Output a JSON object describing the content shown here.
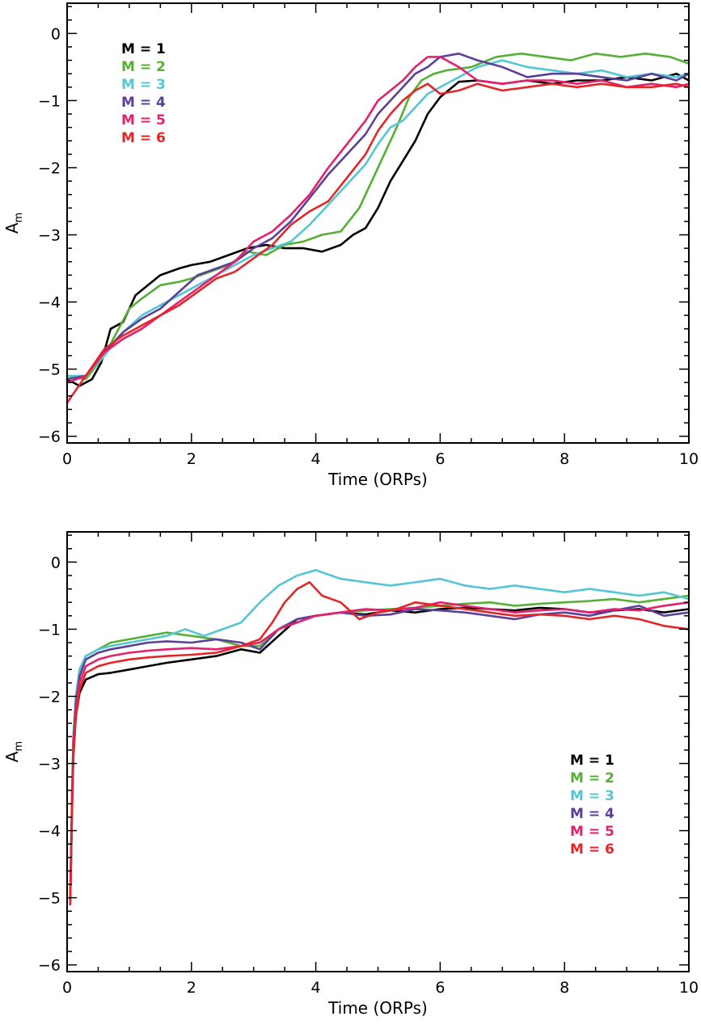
{
  "chart_data": [
    {
      "type": "line",
      "xlabel": "Time (ORPs)",
      "ylabel": "A",
      "ylabel_sub": "m",
      "xlim": [
        0,
        10
      ],
      "ylim": [
        -6.1,
        0.45
      ],
      "xticks": [
        0,
        2,
        4,
        6,
        8,
        10
      ],
      "yticks": [
        -6,
        -5,
        -4,
        -3,
        -2,
        -1,
        0
      ],
      "legend_placement": "top-left",
      "series": [
        {
          "name": "M = 1",
          "color": "#000000",
          "x": [
            0,
            0.2,
            0.4,
            0.55,
            0.7,
            0.9,
            1.1,
            1.3,
            1.5,
            1.8,
            2.0,
            2.3,
            2.6,
            2.9,
            3.2,
            3.5,
            3.8,
            4.1,
            4.4,
            4.6,
            4.8,
            5.0,
            5.2,
            5.4,
            5.6,
            5.8,
            6.0,
            6.3,
            6.6,
            7.0,
            7.4,
            7.8,
            8.2,
            8.6,
            9.0,
            9.4,
            9.8,
            10
          ],
          "y": [
            -5.15,
            -5.25,
            -5.15,
            -4.9,
            -4.4,
            -4.3,
            -3.9,
            -3.75,
            -3.6,
            -3.5,
            -3.45,
            -3.4,
            -3.3,
            -3.2,
            -3.15,
            -3.2,
            -3.2,
            -3.25,
            -3.15,
            -3.0,
            -2.9,
            -2.6,
            -2.2,
            -1.9,
            -1.6,
            -1.2,
            -0.95,
            -0.72,
            -0.7,
            -0.75,
            -0.7,
            -0.75,
            -0.7,
            -0.7,
            -0.65,
            -0.7,
            -0.6,
            -0.7
          ]
        },
        {
          "name": "M = 2",
          "color": "#55b035",
          "x": [
            0,
            0.3,
            0.6,
            0.8,
            1.0,
            1.2,
            1.5,
            1.8,
            2.0,
            2.3,
            2.6,
            2.9,
            3.2,
            3.5,
            3.8,
            4.1,
            4.4,
            4.7,
            4.9,
            5.1,
            5.3,
            5.5,
            5.7,
            5.9,
            6.1,
            6.5,
            6.9,
            7.3,
            7.7,
            8.1,
            8.5,
            8.9,
            9.3,
            9.7,
            10
          ],
          "y": [
            -5.1,
            -5.15,
            -4.8,
            -4.45,
            -4.1,
            -3.95,
            -3.75,
            -3.7,
            -3.65,
            -3.55,
            -3.45,
            -3.25,
            -3.3,
            -3.15,
            -3.1,
            -3.0,
            -2.95,
            -2.6,
            -2.2,
            -1.8,
            -1.4,
            -0.95,
            -0.7,
            -0.6,
            -0.55,
            -0.5,
            -0.35,
            -0.3,
            -0.35,
            -0.4,
            -0.3,
            -0.35,
            -0.3,
            -0.35,
            -0.45
          ]
        },
        {
          "name": "M = 3",
          "color": "#55c6d4",
          "x": [
            0,
            0.3,
            0.6,
            0.9,
            1.2,
            1.5,
            1.8,
            2.1,
            2.4,
            2.7,
            3.0,
            3.3,
            3.6,
            3.9,
            4.2,
            4.5,
            4.8,
            5.0,
            5.2,
            5.4,
            5.6,
            5.8,
            6.0,
            6.3,
            6.6,
            7.0,
            7.4,
            7.8,
            8.2,
            8.6,
            9.0,
            9.4,
            9.8,
            10
          ],
          "y": [
            -5.1,
            -5.1,
            -4.8,
            -4.45,
            -4.2,
            -4.05,
            -3.9,
            -3.75,
            -3.6,
            -3.45,
            -3.3,
            -3.2,
            -3.1,
            -2.85,
            -2.55,
            -2.25,
            -1.95,
            -1.65,
            -1.4,
            -1.3,
            -1.1,
            -0.9,
            -0.8,
            -0.65,
            -0.5,
            -0.4,
            -0.5,
            -0.55,
            -0.6,
            -0.55,
            -0.65,
            -0.6,
            -0.65,
            -0.6
          ]
        },
        {
          "name": "M = 4",
          "color": "#5a4098",
          "x": [
            0,
            0.3,
            0.6,
            0.9,
            1.2,
            1.5,
            1.8,
            2.1,
            2.4,
            2.7,
            3.0,
            3.3,
            3.6,
            3.9,
            4.2,
            4.5,
            4.8,
            5.0,
            5.2,
            5.4,
            5.6,
            5.8,
            6.0,
            6.3,
            6.6,
            7.0,
            7.4,
            7.8,
            8.2,
            8.6,
            9.0,
            9.4,
            9.8,
            10
          ],
          "y": [
            -5.15,
            -5.1,
            -4.75,
            -4.45,
            -4.25,
            -4.1,
            -3.85,
            -3.6,
            -3.5,
            -3.4,
            -3.2,
            -3.05,
            -2.8,
            -2.45,
            -2.1,
            -1.8,
            -1.5,
            -1.2,
            -1.0,
            -0.8,
            -0.6,
            -0.5,
            -0.35,
            -0.3,
            -0.4,
            -0.5,
            -0.65,
            -0.6,
            -0.6,
            -0.65,
            -0.7,
            -0.6,
            -0.7,
            -0.6
          ]
        },
        {
          "name": "M = 5",
          "color": "#e6206c",
          "x": [
            0,
            0.3,
            0.6,
            0.9,
            1.2,
            1.5,
            1.8,
            2.1,
            2.4,
            2.7,
            3.0,
            3.3,
            3.6,
            3.9,
            4.2,
            4.5,
            4.8,
            5.0,
            5.2,
            5.4,
            5.6,
            5.8,
            6.0,
            6.3,
            6.6,
            7.0,
            7.4,
            7.8,
            8.2,
            8.6,
            9.0,
            9.4,
            9.8,
            10
          ],
          "y": [
            -5.2,
            -5.1,
            -4.75,
            -4.55,
            -4.4,
            -4.2,
            -4.0,
            -3.8,
            -3.6,
            -3.4,
            -3.1,
            -2.95,
            -2.7,
            -2.4,
            -2.0,
            -1.65,
            -1.3,
            -1.0,
            -0.85,
            -0.7,
            -0.5,
            -0.35,
            -0.35,
            -0.5,
            -0.7,
            -0.75,
            -0.7,
            -0.7,
            -0.75,
            -0.7,
            -0.8,
            -0.75,
            -0.8,
            -0.75
          ]
        },
        {
          "name": "M = 6",
          "color": "#e42629",
          "x": [
            0,
            0.3,
            0.6,
            0.9,
            1.2,
            1.5,
            1.8,
            2.1,
            2.4,
            2.7,
            3.0,
            3.3,
            3.6,
            3.9,
            4.2,
            4.5,
            4.8,
            5.0,
            5.2,
            5.4,
            5.6,
            5.8,
            6.0,
            6.3,
            6.6,
            7.0,
            7.4,
            7.8,
            8.2,
            8.6,
            9.0,
            9.4,
            9.8,
            10
          ],
          "y": [
            -5.5,
            -5.1,
            -4.7,
            -4.5,
            -4.35,
            -4.2,
            -4.05,
            -3.85,
            -3.65,
            -3.55,
            -3.35,
            -3.15,
            -2.85,
            -2.65,
            -2.5,
            -2.15,
            -1.8,
            -1.45,
            -1.2,
            -1.0,
            -0.85,
            -0.75,
            -0.9,
            -0.85,
            -0.75,
            -0.85,
            -0.8,
            -0.75,
            -0.8,
            -0.75,
            -0.8,
            -0.8,
            -0.75,
            -0.8
          ]
        }
      ]
    },
    {
      "type": "line",
      "xlabel": "Time (ORPs)",
      "ylabel": "A",
      "ylabel_sub": "m",
      "xlim": [
        0,
        10
      ],
      "ylim": [
        -6.1,
        0.45
      ],
      "xticks": [
        0,
        2,
        4,
        6,
        8,
        10
      ],
      "yticks": [
        -6,
        -5,
        -4,
        -3,
        -2,
        -1,
        0
      ],
      "legend_placement": "right",
      "series": [
        {
          "name": "M = 1",
          "color": "#000000",
          "x": [
            0.05,
            0.08,
            0.1,
            0.14,
            0.2,
            0.3,
            0.5,
            0.7,
            1.0,
            1.3,
            1.6,
            2.0,
            2.4,
            2.8,
            3.1,
            3.4,
            3.7,
            4.0,
            4.4,
            4.8,
            5.2,
            5.6,
            6.0,
            6.4,
            6.8,
            7.2,
            7.6,
            8.0,
            8.4,
            8.8,
            9.2,
            9.6,
            10
          ],
          "y": [
            -5.1,
            -3.6,
            -2.9,
            -2.3,
            -1.95,
            -1.75,
            -1.67,
            -1.65,
            -1.6,
            -1.55,
            -1.5,
            -1.45,
            -1.4,
            -1.3,
            -1.35,
            -1.1,
            -0.85,
            -0.8,
            -0.75,
            -0.78,
            -0.72,
            -0.75,
            -0.7,
            -0.68,
            -0.7,
            -0.72,
            -0.68,
            -0.7,
            -0.75,
            -0.72,
            -0.7,
            -0.75,
            -0.7
          ]
        },
        {
          "name": "M = 2",
          "color": "#55b035",
          "x": [
            0.05,
            0.08,
            0.1,
            0.14,
            0.2,
            0.3,
            0.5,
            0.7,
            1.0,
            1.3,
            1.6,
            2.0,
            2.4,
            2.8,
            3.1,
            3.4,
            3.7,
            4.0,
            4.4,
            4.8,
            5.2,
            5.6,
            6.0,
            6.4,
            6.8,
            7.2,
            7.6,
            8.0,
            8.4,
            8.8,
            9.2,
            9.6,
            10
          ],
          "y": [
            -5.0,
            -3.4,
            -2.6,
            -2.0,
            -1.6,
            -1.4,
            -1.3,
            -1.2,
            -1.15,
            -1.1,
            -1.05,
            -1.1,
            -1.15,
            -1.25,
            -1.25,
            -1.0,
            -0.85,
            -0.8,
            -0.75,
            -0.72,
            -0.7,
            -0.68,
            -0.65,
            -0.62,
            -0.6,
            -0.65,
            -0.62,
            -0.6,
            -0.58,
            -0.55,
            -0.6,
            -0.55,
            -0.5
          ]
        },
        {
          "name": "M = 3",
          "color": "#55c6d4",
          "x": [
            0.05,
            0.08,
            0.1,
            0.14,
            0.2,
            0.3,
            0.5,
            0.7,
            1.0,
            1.3,
            1.6,
            1.9,
            2.2,
            2.5,
            2.8,
            3.1,
            3.4,
            3.7,
            4.0,
            4.4,
            4.8,
            5.2,
            5.6,
            6.0,
            6.4,
            6.8,
            7.2,
            7.6,
            8.0,
            8.4,
            8.8,
            9.2,
            9.6,
            10
          ],
          "y": [
            -5.0,
            -3.4,
            -2.6,
            -2.0,
            -1.6,
            -1.4,
            -1.3,
            -1.25,
            -1.2,
            -1.15,
            -1.1,
            -1.0,
            -1.1,
            -1.0,
            -0.9,
            -0.6,
            -0.35,
            -0.2,
            -0.12,
            -0.25,
            -0.3,
            -0.35,
            -0.3,
            -0.25,
            -0.35,
            -0.4,
            -0.35,
            -0.4,
            -0.45,
            -0.4,
            -0.45,
            -0.5,
            -0.45,
            -0.55
          ]
        },
        {
          "name": "M = 4",
          "color": "#5a4098",
          "x": [
            0.05,
            0.08,
            0.1,
            0.14,
            0.2,
            0.3,
            0.5,
            0.7,
            1.0,
            1.3,
            1.6,
            2.0,
            2.4,
            2.8,
            3.1,
            3.4,
            3.7,
            4.0,
            4.4,
            4.8,
            5.2,
            5.6,
            6.0,
            6.4,
            6.8,
            7.2,
            7.6,
            8.0,
            8.4,
            8.8,
            9.2,
            9.6,
            10
          ],
          "y": [
            -5.05,
            -3.5,
            -2.7,
            -2.1,
            -1.7,
            -1.45,
            -1.35,
            -1.3,
            -1.25,
            -1.2,
            -1.18,
            -1.2,
            -1.15,
            -1.2,
            -1.3,
            -1.0,
            -0.85,
            -0.8,
            -0.75,
            -0.8,
            -0.78,
            -0.7,
            -0.72,
            -0.75,
            -0.8,
            -0.85,
            -0.78,
            -0.75,
            -0.8,
            -0.72,
            -0.65,
            -0.8,
            -0.75
          ]
        },
        {
          "name": "M = 5",
          "color": "#e6206c",
          "x": [
            0.05,
            0.08,
            0.1,
            0.14,
            0.2,
            0.3,
            0.5,
            0.7,
            1.0,
            1.3,
            1.6,
            2.0,
            2.4,
            2.8,
            3.1,
            3.4,
            3.7,
            4.0,
            4.4,
            4.8,
            5.2,
            5.6,
            6.0,
            6.4,
            6.8,
            7.2,
            7.6,
            8.0,
            8.4,
            8.8,
            9.2,
            9.6,
            10
          ],
          "y": [
            -5.1,
            -3.6,
            -2.8,
            -2.2,
            -1.8,
            -1.55,
            -1.45,
            -1.4,
            -1.35,
            -1.32,
            -1.3,
            -1.28,
            -1.3,
            -1.25,
            -1.2,
            -1.0,
            -0.9,
            -0.8,
            -0.75,
            -0.7,
            -0.72,
            -0.68,
            -0.6,
            -0.65,
            -0.7,
            -0.75,
            -0.72,
            -0.7,
            -0.75,
            -0.7,
            -0.72,
            -0.65,
            -0.6
          ]
        },
        {
          "name": "M = 6",
          "color": "#e42629",
          "x": [
            0.05,
            0.08,
            0.1,
            0.14,
            0.2,
            0.3,
            0.5,
            0.7,
            1.0,
            1.3,
            1.6,
            2.0,
            2.4,
            2.8,
            3.1,
            3.3,
            3.5,
            3.7,
            3.9,
            4.1,
            4.4,
            4.7,
            5.0,
            5.3,
            5.6,
            6.0,
            6.4,
            6.8,
            7.2,
            7.6,
            8.0,
            8.4,
            8.8,
            9.2,
            9.6,
            10
          ],
          "y": [
            -5.1,
            -3.7,
            -2.9,
            -2.3,
            -1.9,
            -1.65,
            -1.55,
            -1.5,
            -1.45,
            -1.42,
            -1.4,
            -1.38,
            -1.35,
            -1.25,
            -1.15,
            -0.9,
            -0.6,
            -0.4,
            -0.3,
            -0.5,
            -0.6,
            -0.85,
            -0.75,
            -0.7,
            -0.6,
            -0.65,
            -0.7,
            -0.75,
            -0.8,
            -0.78,
            -0.8,
            -0.85,
            -0.8,
            -0.85,
            -0.95,
            -1.0
          ]
        }
      ]
    }
  ]
}
